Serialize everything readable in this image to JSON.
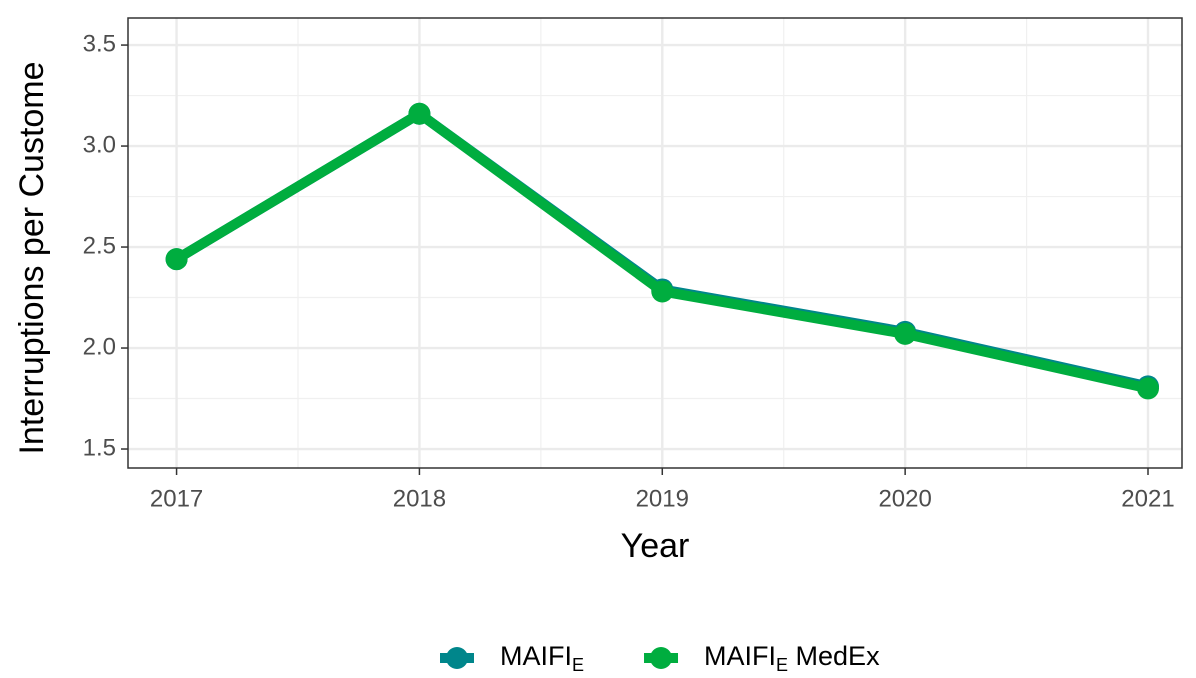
{
  "chart_data": {
    "type": "line",
    "x_label": "Year",
    "y_label": "Interruptions per Custome",
    "x": [
      2017,
      2018,
      2019,
      2020,
      2021
    ],
    "series": [
      {
        "name": "MAIFIE",
        "color": "#00868b",
        "values": [
          2.44,
          3.16,
          2.29,
          2.08,
          1.81
        ]
      },
      {
        "name": "MAIFIE MedEx",
        "color": "#00ad3f",
        "values": [
          2.44,
          3.16,
          2.28,
          2.07,
          1.8
        ]
      }
    ],
    "xlim": [
      2016.8,
      2021.14
    ],
    "xticks": [
      2017,
      2018,
      2019,
      2020,
      2021
    ],
    "ylim": [
      1.406,
      3.634
    ],
    "yticks": [
      {
        "value": 1.5,
        "label": "1.5"
      },
      {
        "value": 2,
        "label": "2.0"
      },
      {
        "value": 2.5,
        "label": "2.5"
      },
      {
        "value": 3,
        "label": "3.0"
      },
      {
        "value": 3.5,
        "label": "3.5"
      }
    ],
    "grid": true,
    "legend": "bottom"
  }
}
